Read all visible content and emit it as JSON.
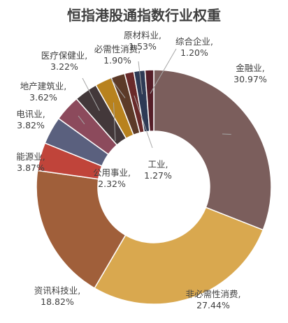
{
  "chart_data": {
    "type": "pie",
    "title": "恒指港股通指数行业权重",
    "categories": [
      "金融业",
      "非必需性消费",
      "资讯科技业",
      "能源业",
      "电讯业",
      "地产建筑业",
      "医疗保健业",
      "公用事业",
      "必需性消费",
      "工业",
      "原材料业",
      "综合企业"
    ],
    "values": [
      30.97,
      27.44,
      18.82,
      3.87,
      3.82,
      3.62,
      3.22,
      2.32,
      1.9,
      1.27,
      1.53,
      1.2
    ],
    "value_labels": [
      "30.97%",
      "27.44%",
      "18.82%",
      "3.87%",
      "3.82%",
      "3.62%",
      "3.22%",
      "2.32%",
      "1.90%",
      "1.27%",
      "1.53%",
      "1.20%"
    ],
    "colors": [
      "#7b5e5c",
      "#d9a84f",
      "#a05f3a",
      "#c0443a",
      "#5a607e",
      "#8c4a5c",
      "#43383a",
      "#b8821e",
      "#5c3a28",
      "#6a2a2a",
      "#2e3a55",
      "#551e28"
    ],
    "style": "donut",
    "start_angle_degrees": 0,
    "direction": "clockwise",
    "legend": "none"
  }
}
